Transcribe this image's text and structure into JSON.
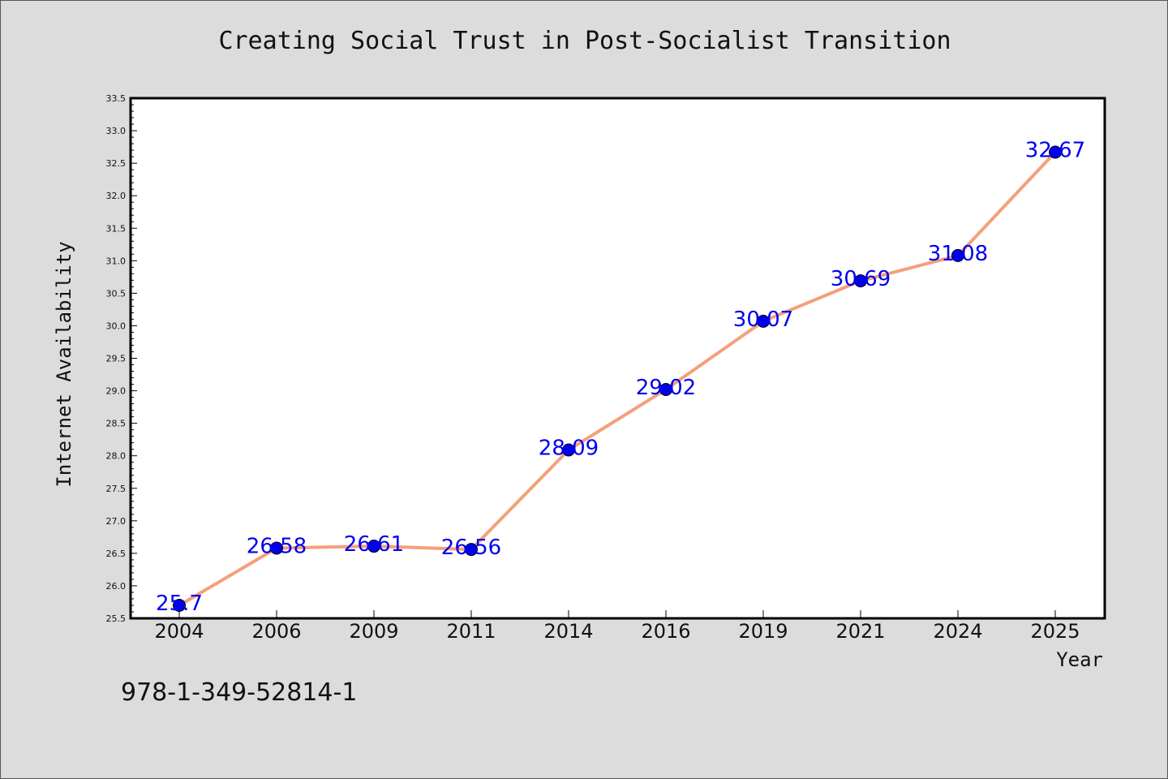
{
  "chart_data": {
    "type": "line",
    "title": "Creating Social Trust in Post-Socialist Transition",
    "xlabel": "Year",
    "ylabel": "Internet Availability",
    "categories": [
      "2004",
      "2006",
      "2009",
      "2011",
      "2014",
      "2016",
      "2019",
      "2021",
      "2024",
      "2025"
    ],
    "values": [
      25.7,
      26.58,
      26.61,
      26.56,
      28.09,
      29.02,
      30.07,
      30.69,
      31.08,
      32.67
    ],
    "data_labels": [
      "25.7",
      "26.58",
      "26.61",
      "26.56",
      "28.09",
      "29.02",
      "30.07",
      "30.69",
      "31.08",
      "32.67"
    ],
    "ylim": [
      25.5,
      33.5
    ],
    "yticks": [
      "25.5",
      "26.0",
      "26.5",
      "27.0",
      "27.5",
      "28.0",
      "28.5",
      "29.0",
      "29.5",
      "30.0",
      "30.5",
      "31.0",
      "31.5",
      "32.0",
      "32.5",
      "33.0",
      "33.5"
    ],
    "grid": false,
    "line_color": "#f4a07c",
    "marker_color": "#0000ee",
    "label_color": "#0000ee"
  },
  "footer": {
    "isbn": "978-1-349-52814-1"
  }
}
